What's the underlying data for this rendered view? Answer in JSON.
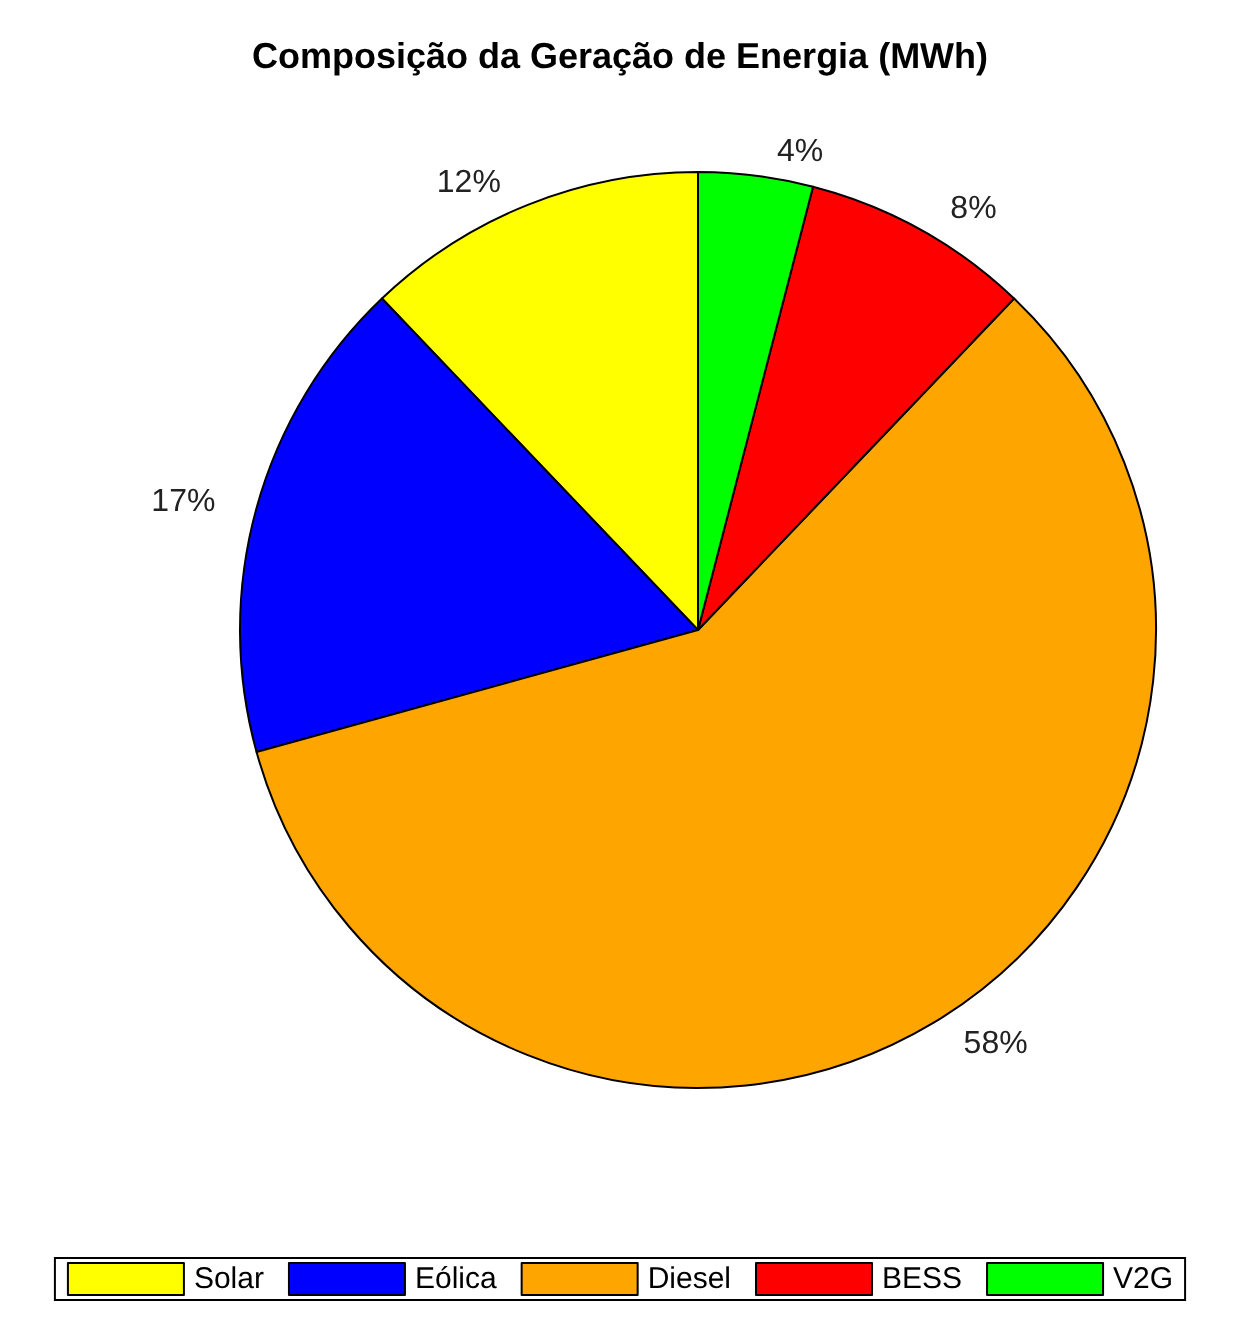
{
  "chart_data": {
    "type": "pie",
    "title": "Composição da Geração de Energia (MWh)",
    "categories": [
      "Solar",
      "Eólica",
      "Diesel",
      "BESS",
      "V2G"
    ],
    "values": [
      12,
      17,
      58,
      8,
      4
    ],
    "value_labels": [
      "12%",
      "17%",
      "58%",
      "8%",
      "4%"
    ],
    "colors": [
      "#ffff00",
      "#0000ff",
      "#ffa500",
      "#ff0000",
      "#00ff00"
    ],
    "legend": "bottom"
  }
}
